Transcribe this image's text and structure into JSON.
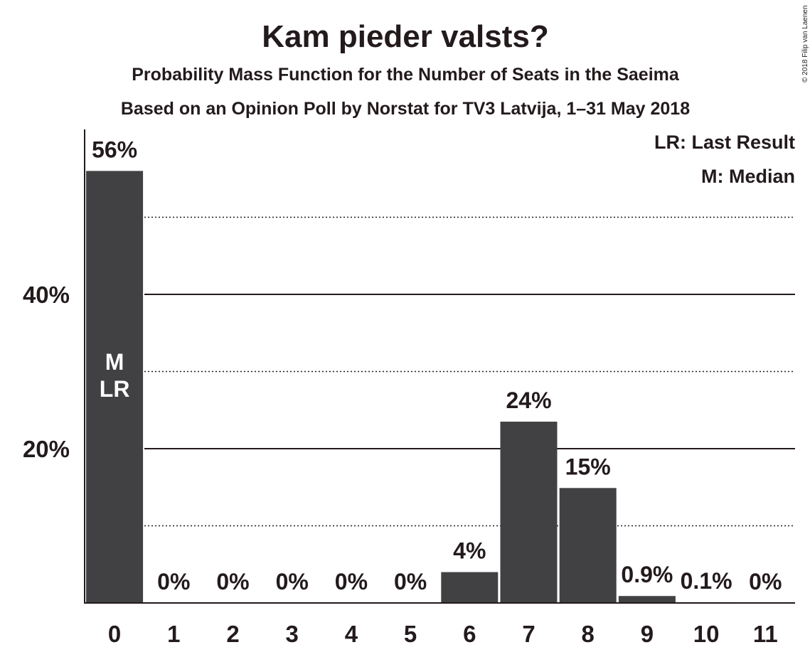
{
  "chart_data": {
    "type": "bar",
    "title": "Kam pieder valsts?",
    "subtitle": "Probability Mass Function for the Number of Seats in the Saeima",
    "subtitle2": "Based on an Opinion Poll by Norstat for TV3 Latvija, 1–31 May 2018",
    "copyright": "© 2018 Filip van Laenen",
    "categories": [
      "0",
      "1",
      "2",
      "3",
      "4",
      "5",
      "6",
      "7",
      "8",
      "9",
      "10",
      "11"
    ],
    "values": [
      56,
      0,
      0,
      0,
      0,
      0,
      4,
      23.5,
      14.9,
      0.9,
      0.1,
      0
    ],
    "value_labels": [
      "56%",
      "0%",
      "0%",
      "0%",
      "0%",
      "0%",
      "4%",
      "24%",
      "15%",
      "0.9%",
      "0.1%",
      "0%"
    ],
    "ylim": [
      0,
      60
    ],
    "yticks": [
      20,
      40
    ],
    "ytick_labels": [
      "20%",
      "40%"
    ],
    "dotted_gridlines": [
      10,
      30,
      50
    ],
    "legend": [
      "LR: Last Result",
      "M: Median"
    ],
    "legend_position": "top-right",
    "bar_annotations": [
      {
        "category": "0",
        "lines": [
          "M",
          "LR"
        ]
      }
    ],
    "colors": {
      "bar": "#414042",
      "text": "#231a1c",
      "axis": "#231a1c"
    }
  }
}
